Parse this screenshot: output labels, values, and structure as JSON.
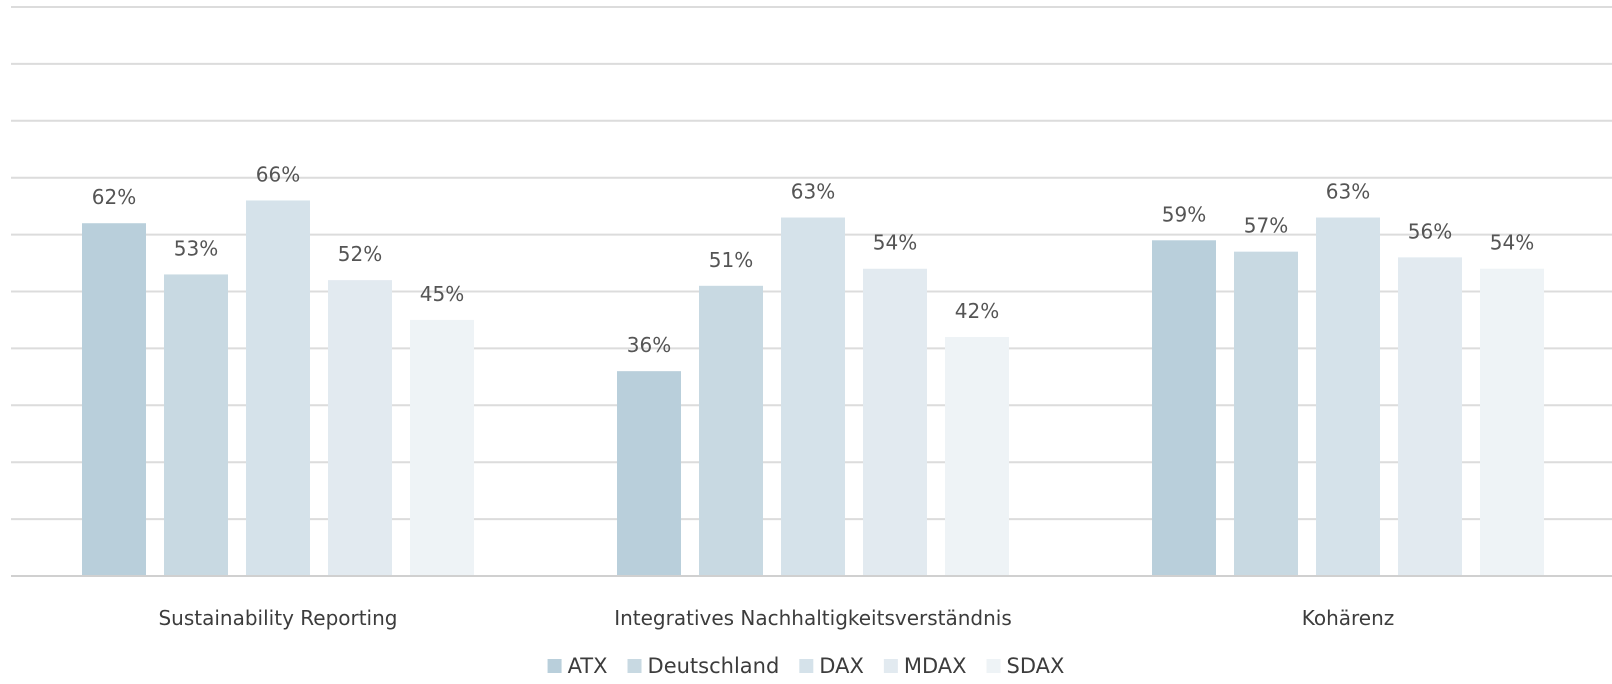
{
  "chart_data": {
    "type": "bar",
    "categories": [
      "Sustainability Reporting",
      "Integratives Nachhaltigkeitsverständnis",
      "Kohärenz"
    ],
    "series": [
      {
        "name": "ATX",
        "values": [
          62,
          36,
          59
        ],
        "labels": [
          "62%",
          "36%",
          "59%"
        ],
        "color": "#b9cfdb"
      },
      {
        "name": "Deutschland",
        "values": [
          53,
          51,
          57
        ],
        "labels": [
          "53%",
          "51%",
          "57%"
        ],
        "color": "#c8d9e2"
      },
      {
        "name": "DAX",
        "values": [
          66,
          63,
          63
        ],
        "labels": [
          "66%",
          "63%",
          "63%"
        ],
        "color": "#d5e2ea"
      },
      {
        "name": "MDAX",
        "values": [
          52,
          54,
          56
        ],
        "labels": [
          "52%",
          "54%",
          "56%"
        ],
        "color": "#e2eaf0"
      },
      {
        "name": "SDAX",
        "values": [
          45,
          42,
          54
        ],
        "labels": [
          "45%",
          "42%",
          "54%"
        ],
        "color": "#eef3f6"
      }
    ],
    "ylim": [
      0,
      100
    ],
    "grid": true,
    "legend_position": "bottom"
  }
}
